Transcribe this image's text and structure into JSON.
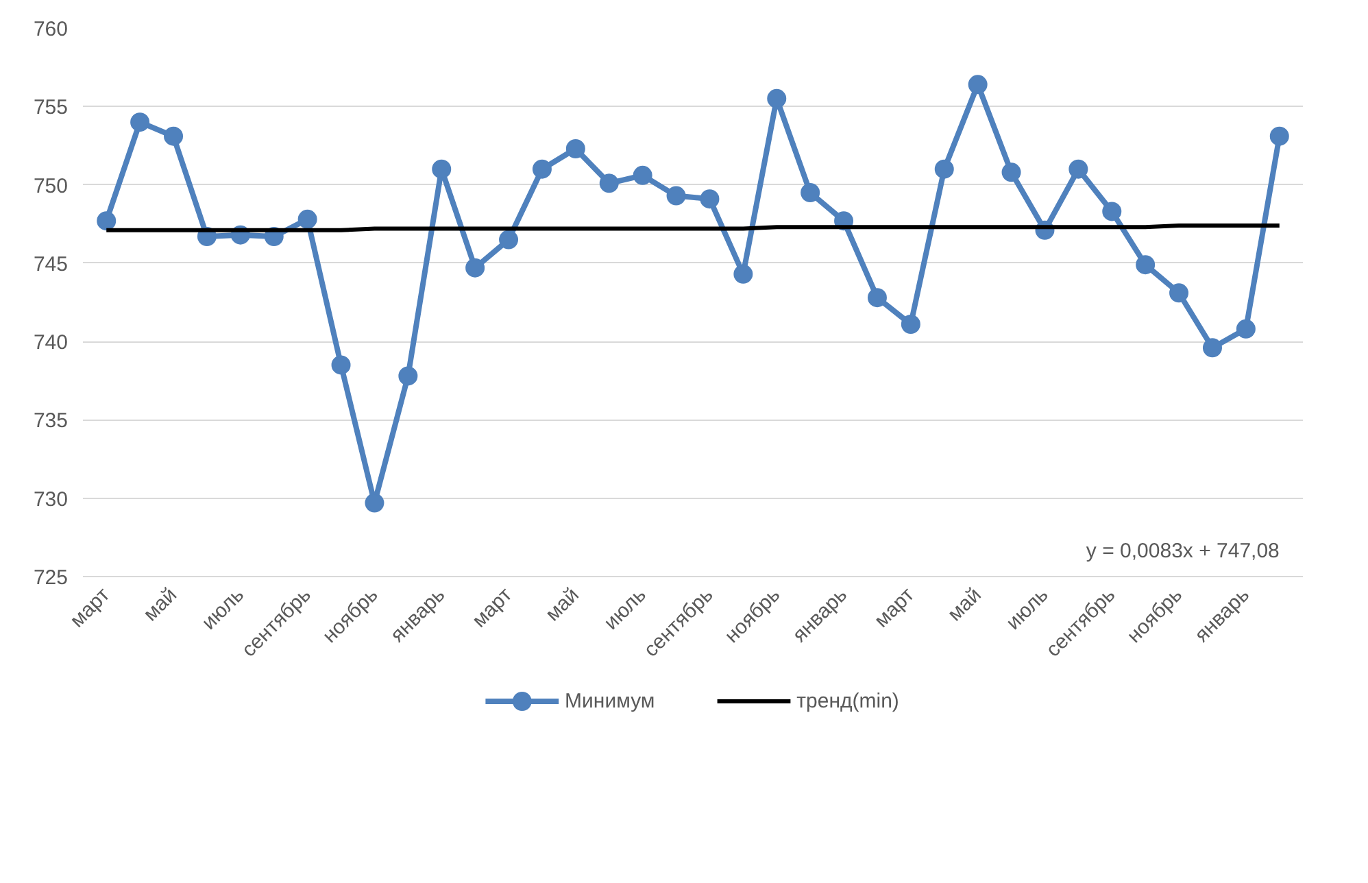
{
  "chart_data": {
    "type": "line",
    "categories": [
      "март",
      null,
      "май",
      null,
      "июль",
      null,
      "сентябрь",
      null,
      "ноябрь",
      null,
      "январь",
      null,
      "март",
      null,
      "май",
      null,
      "июль",
      null,
      "сентябрь",
      null,
      "ноябрь",
      null,
      "январь",
      null,
      "март",
      null,
      "май",
      null,
      "июль",
      null,
      "сентябрь",
      null,
      "ноябрь",
      null,
      "январь",
      null
    ],
    "series": [
      {
        "name": "Минимум",
        "color": "#4f81bd",
        "marker": "circle",
        "values": [
          747.7,
          754.0,
          753.1,
          746.7,
          746.8,
          746.7,
          747.8,
          738.5,
          729.7,
          737.8,
          751.0,
          744.7,
          746.5,
          751.0,
          752.3,
          750.1,
          750.6,
          749.3,
          749.1,
          744.3,
          755.5,
          749.5,
          747.7,
          742.8,
          741.1,
          751.0,
          756.4,
          750.8,
          747.1,
          751.0,
          748.3,
          744.9,
          743.1,
          739.6,
          740.8,
          753.1
        ]
      },
      {
        "name": "тренд(min)",
        "color": "#000000",
        "marker": "none",
        "values": [
          747.1,
          747.1,
          747.1,
          747.1,
          747.1,
          747.1,
          747.1,
          747.1,
          747.2,
          747.2,
          747.2,
          747.2,
          747.2,
          747.2,
          747.2,
          747.2,
          747.2,
          747.2,
          747.2,
          747.2,
          747.3,
          747.3,
          747.3,
          747.3,
          747.3,
          747.3,
          747.3,
          747.3,
          747.3,
          747.3,
          747.3,
          747.3,
          747.4,
          747.4,
          747.4,
          747.4
        ]
      }
    ],
    "ylim": [
      725,
      760
    ],
    "yticks": [
      725,
      730,
      735,
      740,
      745,
      750,
      755,
      760
    ],
    "grid": "y",
    "legend": "bottom",
    "line_style": "solid",
    "annotations": [
      "y = 0,0083x + 747,08"
    ]
  }
}
